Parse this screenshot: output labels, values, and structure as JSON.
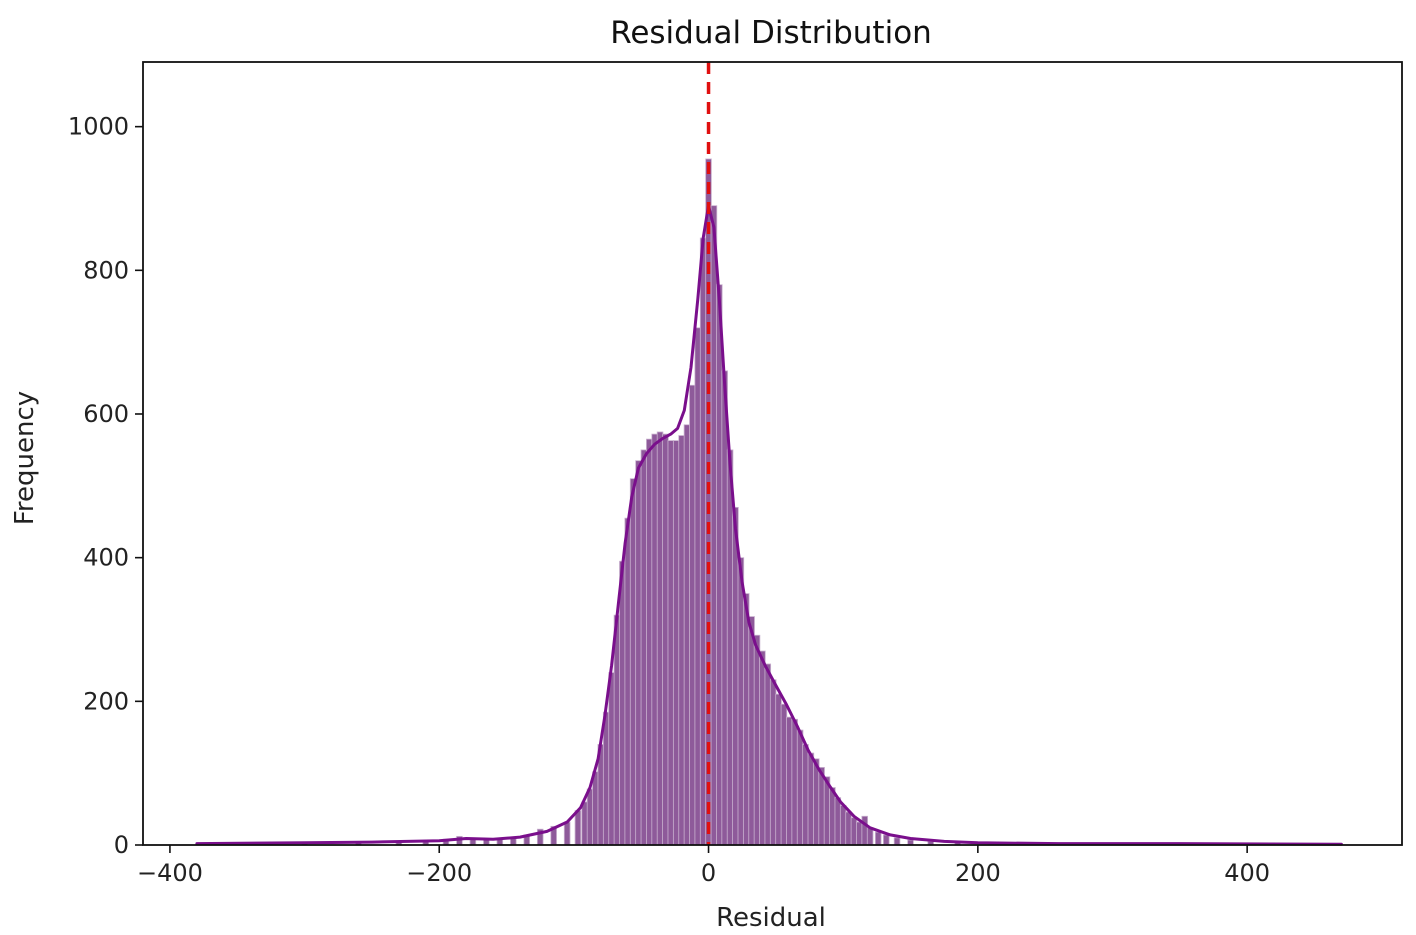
{
  "chart_data": {
    "type": "bar",
    "title": "Residual Distribution",
    "xlabel": "Residual",
    "ylabel": "Frequency",
    "xlim": [
      -420,
      515
    ],
    "ylim": [
      0,
      1090
    ],
    "xticks": [
      -400,
      -200,
      0,
      200,
      400
    ],
    "xtick_labels": [
      "−400",
      "−200",
      "0",
      "200",
      "400"
    ],
    "yticks": [
      0,
      200,
      400,
      600,
      800,
      1000
    ],
    "ytick_labels": [
      "0",
      "200",
      "400",
      "600",
      "800",
      "1000"
    ],
    "grid": false,
    "bin_width": 4.25,
    "bar_color": "#8e5a9a",
    "bar_edge_color": "#c9b1cf",
    "kde_color": "#7a0f8c",
    "reference_line": {
      "x": 0,
      "color": "#e01010",
      "style": "dashed"
    },
    "histogram": [
      {
        "x": -375,
        "y": 2
      },
      {
        "x": -340,
        "y": 2
      },
      {
        "x": -300,
        "y": 3
      },
      {
        "x": -260,
        "y": 4
      },
      {
        "x": -230,
        "y": 5
      },
      {
        "x": -210,
        "y": 6
      },
      {
        "x": -195,
        "y": 8
      },
      {
        "x": -185,
        "y": 12
      },
      {
        "x": -175,
        "y": 9
      },
      {
        "x": -165,
        "y": 8
      },
      {
        "x": -155,
        "y": 9
      },
      {
        "x": -145,
        "y": 11
      },
      {
        "x": -135,
        "y": 14
      },
      {
        "x": -125,
        "y": 22
      },
      {
        "x": -115,
        "y": 26
      },
      {
        "x": -105,
        "y": 32
      },
      {
        "x": -97,
        "y": 48
      },
      {
        "x": -92,
        "y": 60
      },
      {
        "x": -88,
        "y": 78
      },
      {
        "x": -84,
        "y": 102
      },
      {
        "x": -80,
        "y": 140
      },
      {
        "x": -76,
        "y": 185
      },
      {
        "x": -72,
        "y": 240
      },
      {
        "x": -68,
        "y": 320
      },
      {
        "x": -64,
        "y": 395
      },
      {
        "x": -60,
        "y": 455
      },
      {
        "x": -56,
        "y": 510
      },
      {
        "x": -52,
        "y": 535
      },
      {
        "x": -48,
        "y": 550
      },
      {
        "x": -44,
        "y": 565
      },
      {
        "x": -40,
        "y": 572
      },
      {
        "x": -36,
        "y": 575
      },
      {
        "x": -32,
        "y": 572
      },
      {
        "x": -28,
        "y": 563
      },
      {
        "x": -24,
        "y": 563
      },
      {
        "x": -20,
        "y": 570
      },
      {
        "x": -16,
        "y": 585
      },
      {
        "x": -12,
        "y": 640
      },
      {
        "x": -8,
        "y": 720
      },
      {
        "x": -4,
        "y": 845
      },
      {
        "x": 0,
        "y": 955
      },
      {
        "x": 4,
        "y": 890
      },
      {
        "x": 8,
        "y": 780
      },
      {
        "x": 12,
        "y": 660
      },
      {
        "x": 16,
        "y": 550
      },
      {
        "x": 20,
        "y": 470
      },
      {
        "x": 24,
        "y": 400
      },
      {
        "x": 28,
        "y": 350
      },
      {
        "x": 32,
        "y": 318
      },
      {
        "x": 36,
        "y": 292
      },
      {
        "x": 40,
        "y": 270
      },
      {
        "x": 44,
        "y": 252
      },
      {
        "x": 48,
        "y": 230
      },
      {
        "x": 52,
        "y": 210
      },
      {
        "x": 56,
        "y": 196
      },
      {
        "x": 60,
        "y": 178
      },
      {
        "x": 64,
        "y": 175
      },
      {
        "x": 68,
        "y": 160
      },
      {
        "x": 72,
        "y": 140
      },
      {
        "x": 76,
        "y": 128
      },
      {
        "x": 80,
        "y": 120
      },
      {
        "x": 84,
        "y": 108
      },
      {
        "x": 88,
        "y": 95
      },
      {
        "x": 92,
        "y": 80
      },
      {
        "x": 96,
        "y": 66
      },
      {
        "x": 100,
        "y": 55
      },
      {
        "x": 104,
        "y": 46
      },
      {
        "x": 108,
        "y": 38
      },
      {
        "x": 112,
        "y": 32
      },
      {
        "x": 116,
        "y": 40
      },
      {
        "x": 120,
        "y": 24
      },
      {
        "x": 126,
        "y": 18
      },
      {
        "x": 132,
        "y": 14
      },
      {
        "x": 140,
        "y": 10
      },
      {
        "x": 150,
        "y": 7
      },
      {
        "x": 165,
        "y": 5
      },
      {
        "x": 185,
        "y": 4
      },
      {
        "x": 210,
        "y": 3
      },
      {
        "x": 260,
        "y": 2
      },
      {
        "x": 330,
        "y": 2
      },
      {
        "x": 400,
        "y": 1
      },
      {
        "x": 465,
        "y": 1
      }
    ],
    "kde": [
      {
        "x": -380,
        "y": 2
      },
      {
        "x": -300,
        "y": 3
      },
      {
        "x": -250,
        "y": 4
      },
      {
        "x": -200,
        "y": 6
      },
      {
        "x": -180,
        "y": 9
      },
      {
        "x": -160,
        "y": 8
      },
      {
        "x": -140,
        "y": 11
      },
      {
        "x": -120,
        "y": 19
      },
      {
        "x": -105,
        "y": 32
      },
      {
        "x": -95,
        "y": 52
      },
      {
        "x": -88,
        "y": 80
      },
      {
        "x": -82,
        "y": 120
      },
      {
        "x": -77,
        "y": 180
      },
      {
        "x": -72,
        "y": 250
      },
      {
        "x": -67,
        "y": 335
      },
      {
        "x": -62,
        "y": 420
      },
      {
        "x": -57,
        "y": 485
      },
      {
        "x": -52,
        "y": 525
      },
      {
        "x": -46,
        "y": 545
      },
      {
        "x": -40,
        "y": 558
      },
      {
        "x": -34,
        "y": 566
      },
      {
        "x": -28,
        "y": 572
      },
      {
        "x": -23,
        "y": 580
      },
      {
        "x": -18,
        "y": 605
      },
      {
        "x": -13,
        "y": 665
      },
      {
        "x": -8,
        "y": 760
      },
      {
        "x": -4,
        "y": 845
      },
      {
        "x": 0,
        "y": 890
      },
      {
        "x": 4,
        "y": 860
      },
      {
        "x": 8,
        "y": 760
      },
      {
        "x": 12,
        "y": 640
      },
      {
        "x": 16,
        "y": 530
      },
      {
        "x": 20,
        "y": 440
      },
      {
        "x": 25,
        "y": 365
      },
      {
        "x": 30,
        "y": 310
      },
      {
        "x": 35,
        "y": 278
      },
      {
        "x": 42,
        "y": 250
      },
      {
        "x": 50,
        "y": 222
      },
      {
        "x": 58,
        "y": 195
      },
      {
        "x": 66,
        "y": 165
      },
      {
        "x": 74,
        "y": 132
      },
      {
        "x": 82,
        "y": 105
      },
      {
        "x": 90,
        "y": 82
      },
      {
        "x": 98,
        "y": 60
      },
      {
        "x": 108,
        "y": 40
      },
      {
        "x": 120,
        "y": 24
      },
      {
        "x": 135,
        "y": 14
      },
      {
        "x": 150,
        "y": 9
      },
      {
        "x": 175,
        "y": 5
      },
      {
        "x": 200,
        "y": 3
      },
      {
        "x": 260,
        "y": 2
      },
      {
        "x": 350,
        "y": 2
      },
      {
        "x": 470,
        "y": 1
      }
    ]
  }
}
